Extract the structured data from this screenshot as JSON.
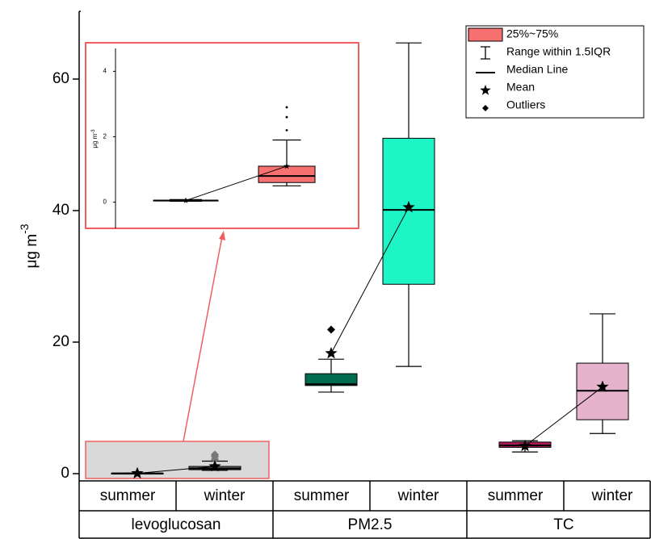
{
  "chart_data": {
    "type": "box",
    "y_label": {
      "text": "μg m",
      "superscript": "-3"
    },
    "ylim": [
      -1,
      70
    ],
    "yticks": [
      0,
      20,
      40,
      60
    ],
    "groups": [
      "levoglucosan",
      "PM2.5",
      "TC"
    ],
    "categories": [
      "summer",
      "winter",
      "summer",
      "winter",
      "summer",
      "winter"
    ],
    "boxes": [
      {
        "color": "#808080",
        "whisker_low": 0.03,
        "q1": 0.04,
        "median": 0.05,
        "q3": 0.06,
        "whisker_high": 0.08,
        "mean": 0.05,
        "outliers": []
      },
      {
        "color": "#808080",
        "whisker_low": 0.5,
        "q1": 0.6,
        "median": 0.8,
        "q3": 1.1,
        "whisker_high": 1.9,
        "mean": 1.1,
        "outliers": [
          2.2,
          2.6,
          2.9
        ]
      },
      {
        "color": "#006B4F",
        "whisker_low": 12.4,
        "q1": 13.4,
        "median": 13.6,
        "q3": 15.2,
        "whisker_high": 17.4,
        "mean": 18.3,
        "outliers": [
          21.9
        ]
      },
      {
        "color": "#1DF5C6",
        "whisker_low": 16.3,
        "q1": 28.8,
        "median": 40.1,
        "q3": 51,
        "whisker_high": 65.5,
        "mean": 40.5,
        "outliers": []
      },
      {
        "color": "#B0175A",
        "whisker_low": 3.3,
        "q1": 4,
        "median": 4.3,
        "q3": 4.8,
        "whisker_high": 5,
        "mean": 4.2,
        "outliers": []
      },
      {
        "color": "#E6B3CC",
        "whisker_low": 6.1,
        "q1": 8.2,
        "median": 12.6,
        "q3": 16.8,
        "whisker_high": 24.3,
        "mean": 13.2,
        "outliers": []
      }
    ],
    "legend": {
      "box": "25%~75%",
      "box_color": "#F87171",
      "whisker": "Range within 1.5IQR",
      "median": "Median Line",
      "mean": "Mean",
      "outliers": "Outliers"
    },
    "inset": {
      "ylim": [
        -0.8,
        4.7
      ],
      "yticks": [
        0,
        2,
        4
      ],
      "color": "#F87171",
      "border_color": "#F06060"
    }
  }
}
